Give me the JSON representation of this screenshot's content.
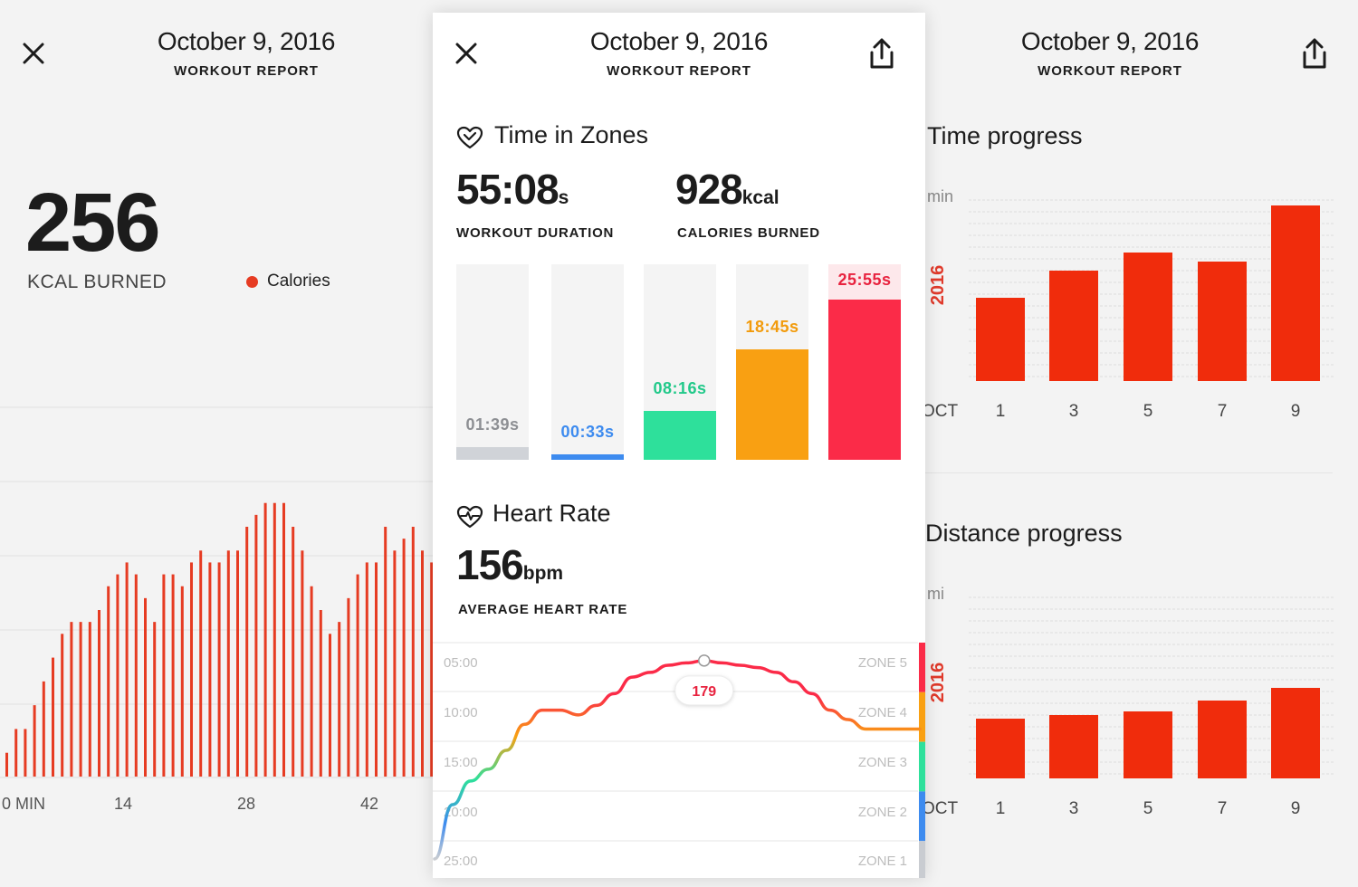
{
  "left_panel": {
    "date": "October 9, 2016",
    "subtitle": "WORKOUT REPORT",
    "big_value": "256",
    "big_label": "KCAL BURNED",
    "legend": "Calories",
    "chart_data": {
      "type": "bar",
      "x_ticks": [
        "0 MIN",
        "14",
        "28",
        "42"
      ],
      "x": [
        0,
        1,
        2,
        3,
        4,
        5,
        6,
        7,
        8,
        9,
        10,
        11,
        12,
        13,
        14,
        15,
        16,
        17,
        18,
        19,
        20,
        21,
        22,
        23,
        24,
        25,
        26,
        27,
        28,
        29,
        30,
        31,
        32,
        33,
        34,
        35,
        36,
        37,
        38,
        39,
        40,
        41,
        42,
        43,
        44,
        45,
        46
      ],
      "values": [
        2,
        4,
        4,
        6,
        8,
        10,
        12,
        13,
        13,
        13,
        14,
        16,
        17,
        18,
        17,
        15,
        13,
        17,
        17,
        16,
        18,
        19,
        18,
        18,
        19,
        19,
        21,
        22,
        23,
        23,
        23,
        21,
        19,
        16,
        14,
        12,
        13,
        15,
        17,
        18,
        18,
        21,
        19,
        20,
        21,
        19,
        18
      ],
      "ylim": [
        0,
        28
      ],
      "color": "#e63b22"
    }
  },
  "center_panel": {
    "date": "October 9, 2016",
    "subtitle": "WORKOUT REPORT",
    "zones_title": "Time in Zones",
    "duration_value": "55:08",
    "duration_unit": "s",
    "duration_label": "WORKOUT DURATION",
    "calories_value": "928",
    "calories_unit": "kcal",
    "calories_label": "CALORIES BURNED",
    "zones": [
      {
        "time": "01:39s",
        "fraction": 0.064,
        "color": "#d0d3d8",
        "text_color": "#8d8f93"
      },
      {
        "time": "00:33s",
        "fraction": 0.022,
        "color": "#3d8bef",
        "text_color": "#3d8bef"
      },
      {
        "time": "08:16s",
        "fraction": 0.25,
        "color": "#2ee09b",
        "text_color": "#22c98a"
      },
      {
        "time": "18:45s",
        "fraction": 0.565,
        "color": "#f9a012",
        "text_color": "#f29b0c"
      },
      {
        "time": "25:55s",
        "fraction": 0.82,
        "color": "#fb2b48",
        "text_color": "#e8233f"
      }
    ],
    "hr_title": "Heart Rate",
    "hr_value": "156",
    "hr_unit": "bpm",
    "hr_label": "AVERAGE HEART RATE",
    "hr_time_labels": [
      "05:00",
      "10:00",
      "15:00",
      "20:00",
      "25:00"
    ],
    "hr_zone_labels": [
      "ZONE 5",
      "ZONE 4",
      "ZONE 3",
      "ZONE 2",
      "ZONE 1"
    ],
    "hr_peak_label": "179",
    "chart_data": {
      "type": "line",
      "x": [
        0,
        2,
        4,
        6,
        8,
        10,
        12,
        14,
        16,
        18,
        20,
        22,
        24,
        26,
        28,
        30,
        32,
        34,
        36,
        38,
        40,
        42,
        44,
        46,
        48,
        50,
        52,
        54
      ],
      "y": [
        95,
        118,
        128,
        133,
        141,
        152,
        158,
        158,
        156,
        160,
        165,
        172,
        174,
        177,
        178,
        179,
        178,
        177,
        176,
        174,
        170,
        165,
        158,
        154,
        150,
        150,
        150,
        150
      ],
      "peak": 179,
      "zone_colors": [
        "#fb2b48",
        "#f9a012",
        "#2ee09b",
        "#3d8bef",
        "#c9ccd1"
      ]
    }
  },
  "right_panel": {
    "date": "October 9, 2016",
    "subtitle": "WORKOUT REPORT",
    "time_title": "Time progress",
    "time_unit": "min",
    "year": "2016",
    "month": "OCT",
    "distance_title": "Distance progress",
    "distance_unit": "mi",
    "chart_data": [
      {
        "type": "bar",
        "categories": [
          "1",
          "3",
          "5",
          "7",
          "9"
        ],
        "values": [
          46,
          61,
          71,
          66,
          97
        ],
        "ylim": [
          0,
          100
        ],
        "color": "#f02c0c"
      },
      {
        "type": "bar",
        "categories": [
          "1",
          "3",
          "5",
          "7",
          "9"
        ],
        "values": [
          33,
          35,
          37,
          43,
          50
        ],
        "ylim": [
          0,
          100
        ],
        "color": "#f02c0c"
      }
    ]
  }
}
